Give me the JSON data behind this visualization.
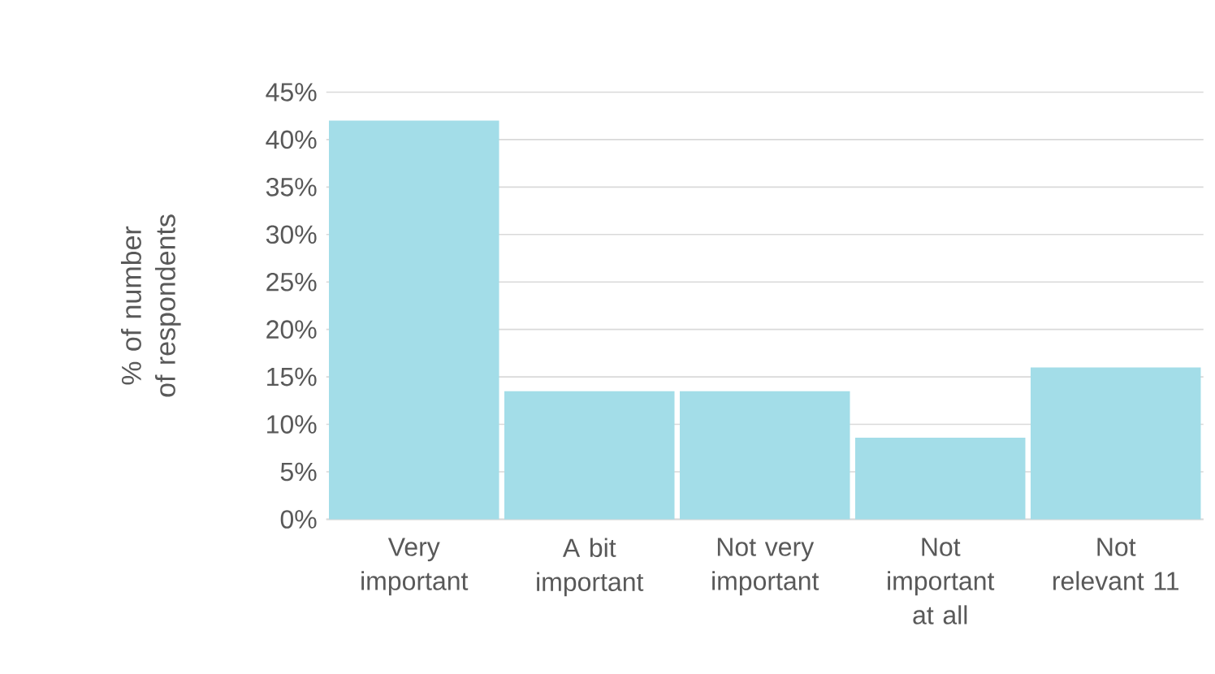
{
  "chart_data": {
    "type": "bar",
    "ylabel": "% of number of respondents",
    "categories": [
      "Very important",
      "A bit important",
      "Not very important",
      "Not important at all",
      "Not relevant 11"
    ],
    "values": [
      42,
      13.5,
      13.5,
      8.6,
      16.0
    ],
    "color": "#a3dde8",
    "ylim": [
      0,
      45
    ],
    "yticks": [
      {
        "value": 0,
        "label": "0%"
      },
      {
        "value": 5,
        "label": "5%"
      },
      {
        "value": 10,
        "label": "10%"
      },
      {
        "value": 15,
        "label": "15%"
      },
      {
        "value": 20,
        "label": "20%"
      },
      {
        "value": 25,
        "label": "25%"
      },
      {
        "value": 30,
        "label": "30%"
      },
      {
        "value": 35,
        "label": "35%"
      },
      {
        "value": 40,
        "label": "40%"
      },
      {
        "value": 45,
        "label": "45%"
      }
    ],
    "grid": "y"
  }
}
